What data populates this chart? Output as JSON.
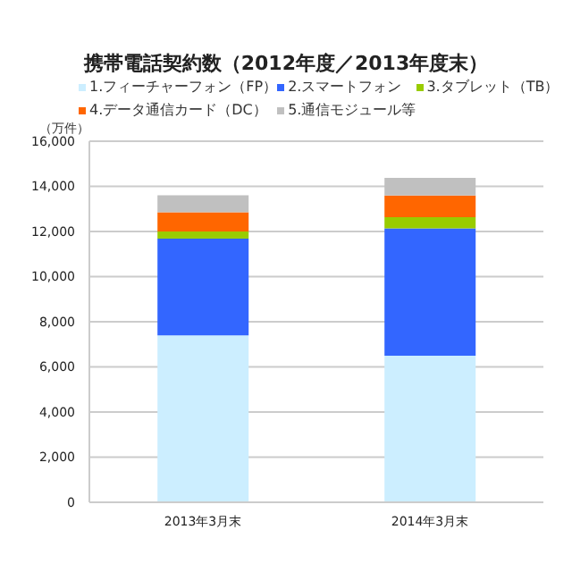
{
  "chart_data": {
    "type": "bar",
    "title": "携帯電話契約数（2012年度／2013年度末）",
    "ylabel": "（万件）",
    "categories": [
      "2013年3月末",
      "2014年3月末"
    ],
    "stacked": true,
    "series": [
      {
        "name": "1.フィーチャーフォン（FP）",
        "color": "#cceeff",
        "values": [
          7400,
          6500
        ]
      },
      {
        "name": "2.スマートフォン",
        "color": "#3366ff",
        "values": [
          4280,
          5640
        ]
      },
      {
        "name": "3.タブレット（TB）",
        "color": "#99cc00",
        "values": [
          320,
          490
        ]
      },
      {
        "name": "4.データ通信カード（DC）",
        "color": "#ff6600",
        "values": [
          850,
          960
        ]
      },
      {
        "name": "5.通信モジュール等",
        "color": "#c0c0c0",
        "values": [
          750,
          790
        ]
      }
    ],
    "ylim": [
      0,
      16000
    ],
    "yticks": [
      {
        "value": 0,
        "label": "0"
      },
      {
        "value": 2000,
        "label": "2,000"
      },
      {
        "value": 4000,
        "label": "4,000"
      },
      {
        "value": 6000,
        "label": "6,000"
      },
      {
        "value": 8000,
        "label": "8,000"
      },
      {
        "value": 10000,
        "label": "10,000"
      },
      {
        "value": 12000,
        "label": "12,000"
      },
      {
        "value": 14000,
        "label": "14,000"
      },
      {
        "value": 16000,
        "label": "16,000"
      }
    ],
    "grid": "y",
    "legend": "top"
  }
}
